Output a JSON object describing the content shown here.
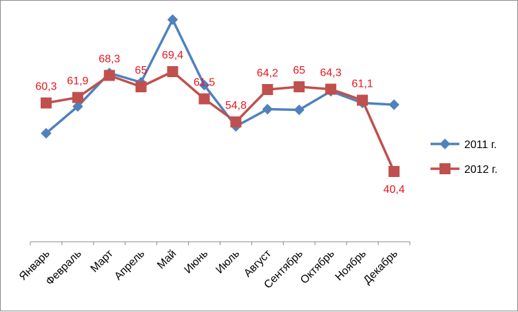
{
  "chart_data": {
    "type": "line",
    "categories": [
      "Январь",
      "Февраль",
      "Март",
      "Апрель",
      "Май",
      "Июнь",
      "Июль",
      "Август",
      "Сентябрь",
      "Октябрь",
      "Ноябрь",
      "Декабрь"
    ],
    "series": [
      {
        "name": "2011 г.",
        "values": [
          51.5,
          59.3,
          69.0,
          66.3,
          84.5,
          65.5,
          53.5,
          58.5,
          58.3,
          63.7,
          60.3,
          59.8
        ],
        "color": "#4f81bd",
        "marker": "diamond",
        "labels": []
      },
      {
        "name": "2012 г.",
        "values": [
          60.3,
          61.9,
          68.3,
          65,
          69.4,
          61.5,
          54.8,
          64.2,
          65,
          64.3,
          61.1,
          40.4
        ],
        "color": "#c0504d",
        "marker": "square",
        "labels": [
          "60,3",
          "61,9",
          "68,3",
          "65",
          "69,4",
          "61,5",
          "54,8",
          "64,2",
          "65",
          "64,3",
          "61,1",
          "40,4"
        ]
      }
    ],
    "title": "",
    "xlabel": "",
    "ylabel": "",
    "ylim": [
      20,
      90
    ],
    "grid": false,
    "legend": "right",
    "data_label_color": "#e8141c"
  }
}
